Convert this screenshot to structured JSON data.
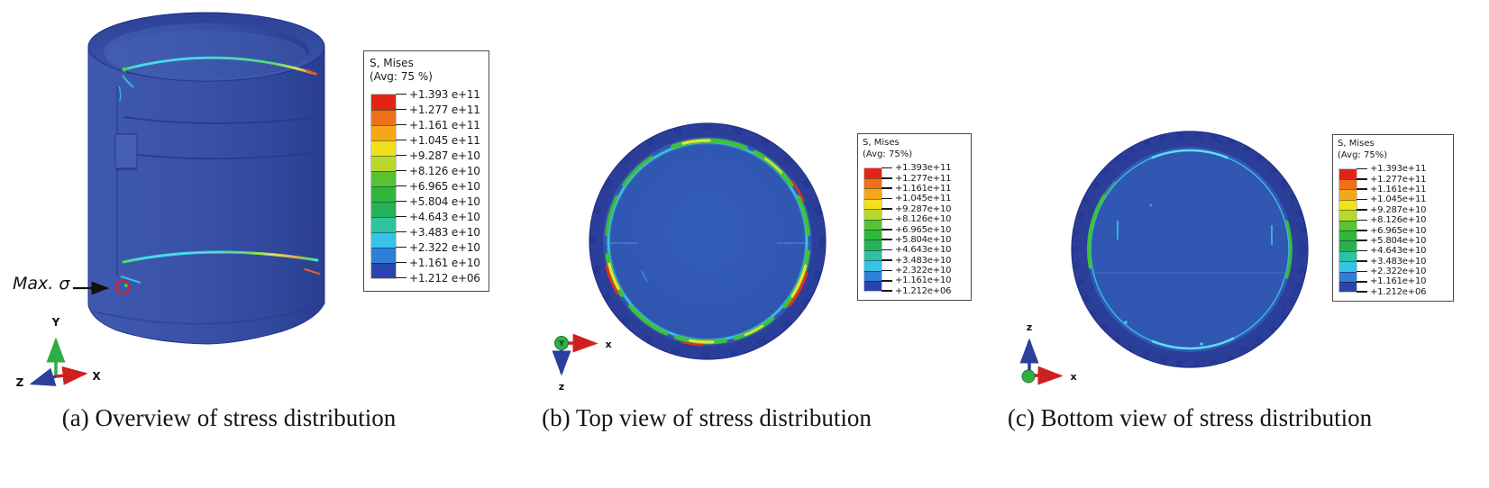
{
  "figure": {
    "panels": [
      {
        "id": "a",
        "caption": "(a) Overview of stress distribution",
        "annotation": {
          "label": "Max. σ"
        },
        "axes": {
          "up": "Y",
          "right": "X",
          "out": "Z"
        },
        "legend": {
          "title": "S, Mises",
          "subtitle": "(Avg: 75 %)",
          "values": [
            "+1.393 e+11",
            "+1.277 e+11",
            "+1.161 e+11",
            "+1.045 e+11",
            "+9.287 e+10",
            "+8.126 e+10",
            "+6.965 e+10",
            "+5.804 e+10",
            "+4.643 e+10",
            "+3.483 e+10",
            "+2.322 e+10",
            "+1.161 e+10",
            "+1.212 e+06"
          ]
        }
      },
      {
        "id": "b",
        "caption": "(b) Top view of stress distribution",
        "axes": {
          "origin": "Y",
          "right": "x",
          "down": "z"
        },
        "legend": {
          "title": "S, Mises",
          "subtitle": "(Avg: 75%)",
          "values": [
            "+1.393e+11",
            "+1.277e+11",
            "+1.161e+11",
            "+1.045e+11",
            "+9.287e+10",
            "+8.126e+10",
            "+6.965e+10",
            "+5.804e+10",
            "+4.643e+10",
            "+3.483e+10",
            "+2.322e+10",
            "+1.161e+10",
            "+1.212e+06"
          ]
        }
      },
      {
        "id": "c",
        "caption": "(c) Bottom view of stress distribution",
        "axes": {
          "up": "z",
          "right": "x"
        },
        "legend": {
          "title": "S, Mises",
          "subtitle": "(Avg: 75%)",
          "values": [
            "+1.393e+11",
            "+1.277e+11",
            "+1.161e+11",
            "+1.045e+11",
            "+9.287e+10",
            "+8.126e+10",
            "+6.965e+10",
            "+5.804e+10",
            "+4.643e+10",
            "+3.483e+10",
            "+2.322e+10",
            "+1.161e+10",
            "+1.212e+06"
          ]
        }
      }
    ],
    "legend_colors": [
      "#e02518",
      "#ee7118",
      "#f5a718",
      "#f4e019",
      "#b8d929",
      "#57c234",
      "#2eb83a",
      "#26b154",
      "#2fc2a0",
      "#35c3e8",
      "#2f7fd6",
      "#2b44ad"
    ],
    "colors": {
      "model_blue": "#3a53a8",
      "rim_blue": "#2b3e9a",
      "disc_blue": "#3057b1",
      "stress_cyan": "#3ecbe9",
      "stress_green": "#3fc13b",
      "stress_yellow": "#f2e232",
      "stress_red": "#e03222",
      "axis_red": "#cf2020",
      "axis_green": "#2fae44",
      "axis_blue": "#2b3f9b",
      "annotation_red": "#dd1f1f"
    }
  }
}
